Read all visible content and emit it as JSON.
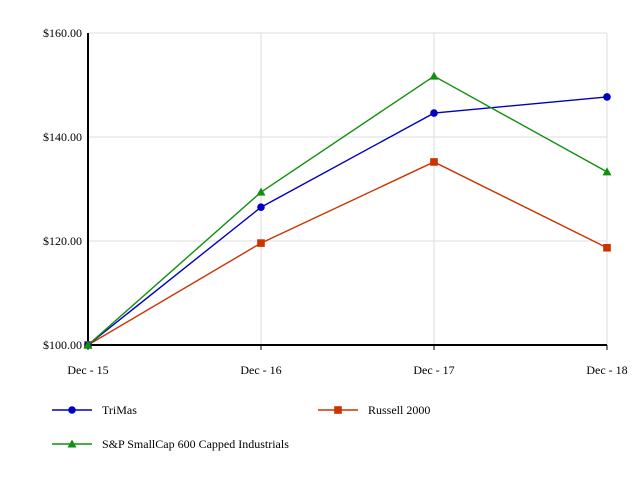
{
  "chart_data": {
    "type": "line",
    "categories": [
      "Dec - 15",
      "Dec - 16",
      "Dec - 17",
      "Dec - 18"
    ],
    "ylim": [
      100,
      160
    ],
    "yticks": [
      100,
      120,
      140,
      160
    ],
    "ytick_labels": [
      "$100.00",
      "$120.00",
      "$140.00",
      "$160.00"
    ],
    "grid": true,
    "legend_position": "bottom",
    "series": [
      {
        "name": "TriMas",
        "values": [
          100,
          126.5,
          144.6,
          147.7
        ],
        "color": "#0000c0",
        "marker": "circle"
      },
      {
        "name": "Russell 2000",
        "values": [
          100,
          119.6,
          135.2,
          118.7
        ],
        "color": "#cc3300",
        "marker": "square"
      },
      {
        "name": "S&P SmallCap 600 Capped Industrials",
        "values": [
          100,
          129.4,
          151.7,
          133.3
        ],
        "color": "#109010",
        "marker": "triangle"
      }
    ]
  }
}
